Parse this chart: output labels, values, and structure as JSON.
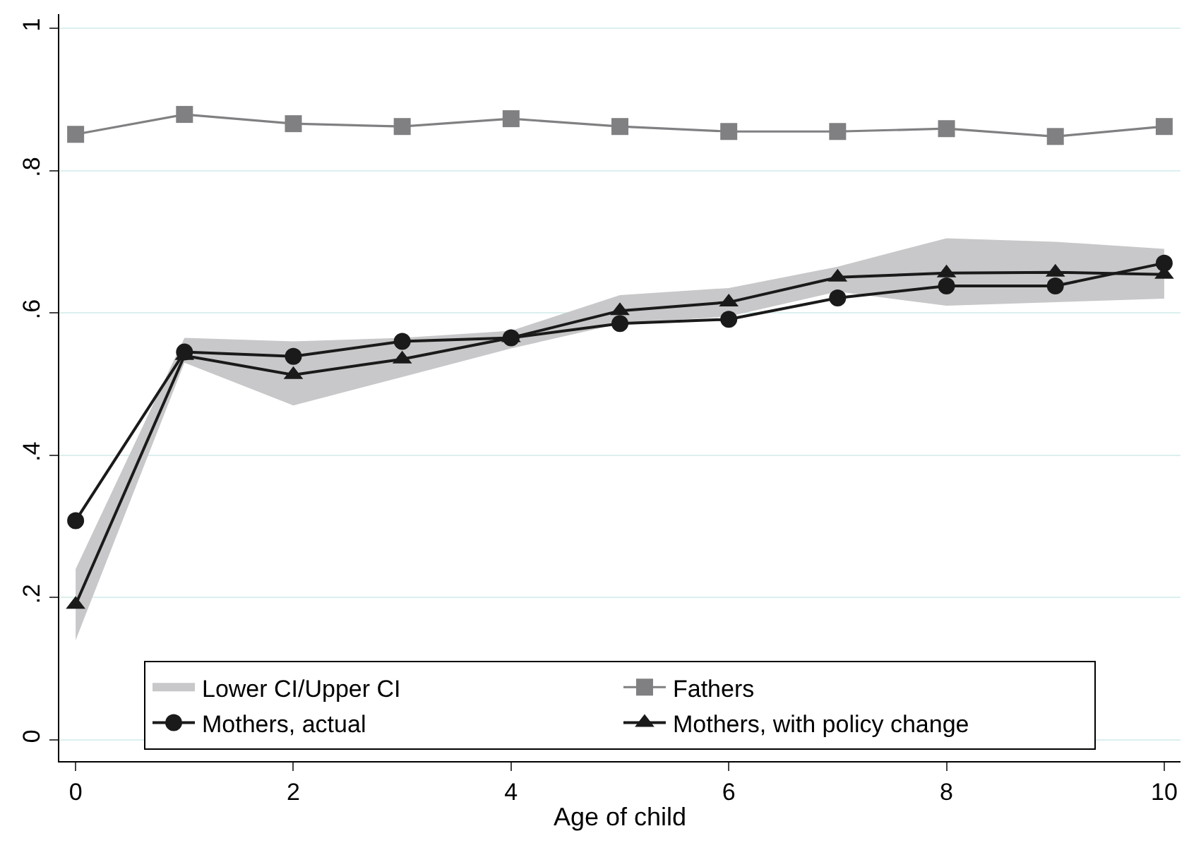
{
  "chart_data": {
    "type": "line",
    "xlabel": "Age of child",
    "x": [
      0,
      1,
      2,
      3,
      4,
      5,
      6,
      7,
      8,
      9,
      10
    ],
    "series": [
      {
        "name": "Lower CI/Upper CI",
        "type": "area",
        "color": "#c8c8ca",
        "values": [
          null,
          null,
          null,
          null,
          null,
          null,
          null,
          null,
          null,
          null,
          null
        ],
        "lower": [
          0.14,
          0.53,
          0.47,
          0.51,
          0.55,
          0.585,
          0.595,
          0.63,
          0.61,
          0.615,
          0.62
        ],
        "upper": [
          0.24,
          0.565,
          0.56,
          0.565,
          0.575,
          0.625,
          0.635,
          0.665,
          0.705,
          0.7,
          0.69
        ]
      },
      {
        "name": "Fathers",
        "color": "#808083",
        "marker": "square",
        "values": [
          0.851,
          0.879,
          0.866,
          0.862,
          0.873,
          0.862,
          0.855,
          0.855,
          0.859,
          0.848,
          0.862
        ]
      },
      {
        "name": "Mothers, actual",
        "color": "#1a1a1a",
        "marker": "circle",
        "values": [
          0.308,
          0.545,
          0.539,
          0.56,
          0.565,
          0.585,
          0.591,
          0.621,
          0.638,
          0.638,
          0.67
        ]
      },
      {
        "name": "Mothers, with policy change",
        "color": "#1a1a1a",
        "marker": "triangle",
        "values": [
          0.19,
          0.54,
          0.513,
          0.535,
          0.565,
          0.603,
          0.615,
          0.65,
          0.656,
          0.657,
          0.654
        ]
      }
    ],
    "xlim": [
      -0.15,
      10.15
    ],
    "xticks": [
      0,
      2,
      4,
      6,
      8,
      10
    ],
    "ylim": [
      -0.03,
      1.02
    ],
    "yticks": [
      {
        "value": 0,
        "label": "0"
      },
      {
        "value": 0.2,
        "label": ".2"
      },
      {
        "value": 0.4,
        "label": ".4"
      },
      {
        "value": 0.6,
        "label": ".6"
      },
      {
        "value": 0.8,
        "label": ".8"
      },
      {
        "value": 1,
        "label": "1"
      }
    ],
    "grid": "y",
    "legend": "bottom"
  }
}
